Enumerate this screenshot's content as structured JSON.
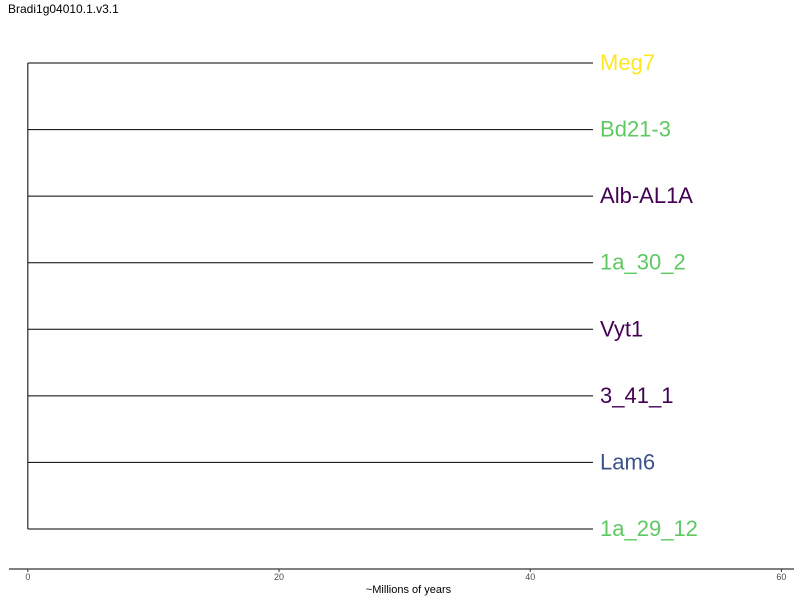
{
  "title": "Bradi1g04010.1.v3.1",
  "chart_data": {
    "type": "tree",
    "xlabel": "~Millions of years",
    "xlim": [
      -1.5,
      61
    ],
    "ticks": [
      0,
      20,
      40,
      60
    ],
    "root_x": 0,
    "tips": [
      {
        "label": "Meg7",
        "x": 45,
        "color": "#FDE725"
      },
      {
        "label": "Bd21-3",
        "x": 45,
        "color": "#5EC962"
      },
      {
        "label": "Alb-AL1A",
        "x": 45,
        "color": "#440154"
      },
      {
        "label": "1a_30_2",
        "x": 45,
        "color": "#5EC962"
      },
      {
        "label": "Vyt1",
        "x": 45,
        "color": "#440154"
      },
      {
        "label": "3_41_1",
        "x": 45,
        "color": "#440154"
      },
      {
        "label": "Lam6",
        "x": 45,
        "color": "#3B528B"
      },
      {
        "label": "1a_29_12",
        "x": 45,
        "color": "#5EC962"
      }
    ]
  }
}
